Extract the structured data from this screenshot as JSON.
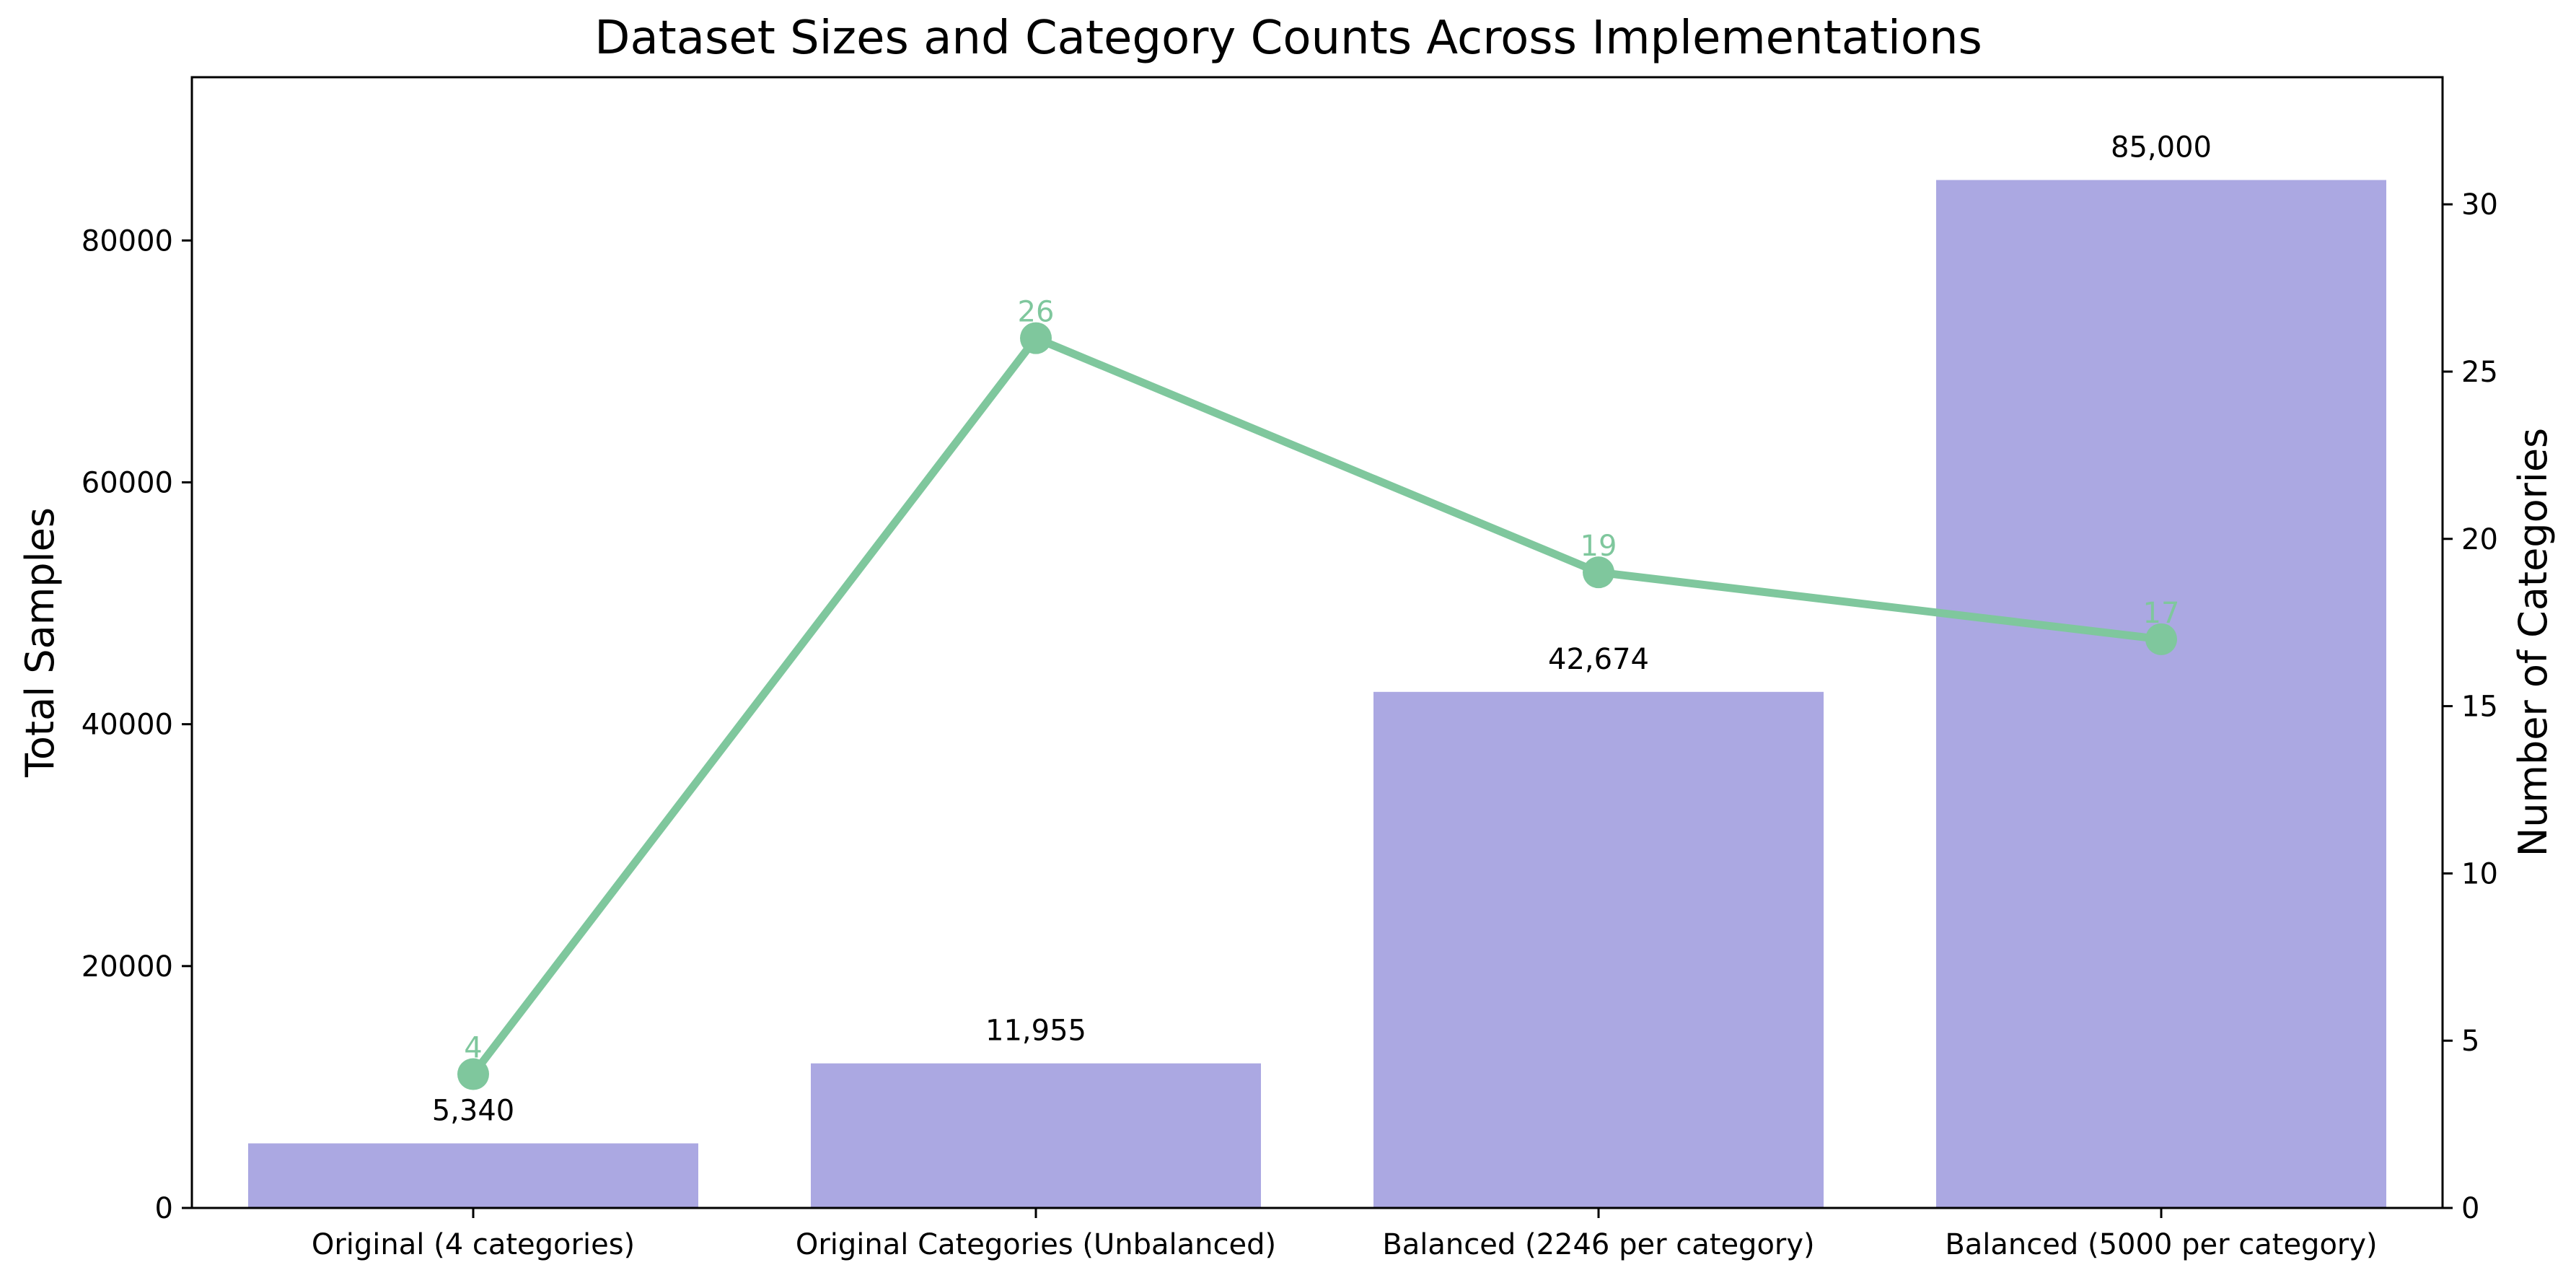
{
  "chart_data": {
    "type": "bar",
    "title": "Dataset Sizes and Category Counts Across Implementations",
    "categories": [
      "Original (4 categories)",
      "Original Categories (Unbalanced)",
      "Balanced (2246 per category)",
      "Balanced (5000 per category)"
    ],
    "ylabel": "Total Samples",
    "y2label": "Number of Categories",
    "ylim": [
      0,
      93500
    ],
    "y2lim": [
      0,
      33.8
    ],
    "yticks": [
      "0",
      "20000",
      "40000",
      "60000",
      "80000"
    ],
    "y2ticks": [
      "0",
      "5",
      "10",
      "15",
      "20",
      "25",
      "30"
    ],
    "series": [
      {
        "type": "bar",
        "values": [
          5340,
          11955,
          42674,
          85000
        ],
        "labels": [
          "5,340",
          "11,955",
          "42,674",
          "85,000"
        ],
        "color": "#aba8e2"
      },
      {
        "type": "line",
        "axis": "right",
        "values": [
          4,
          26,
          19,
          17
        ],
        "labels": [
          "4",
          "26",
          "19",
          "17"
        ],
        "color": "#7fc79d"
      }
    ],
    "grid": false,
    "legend": "none"
  }
}
